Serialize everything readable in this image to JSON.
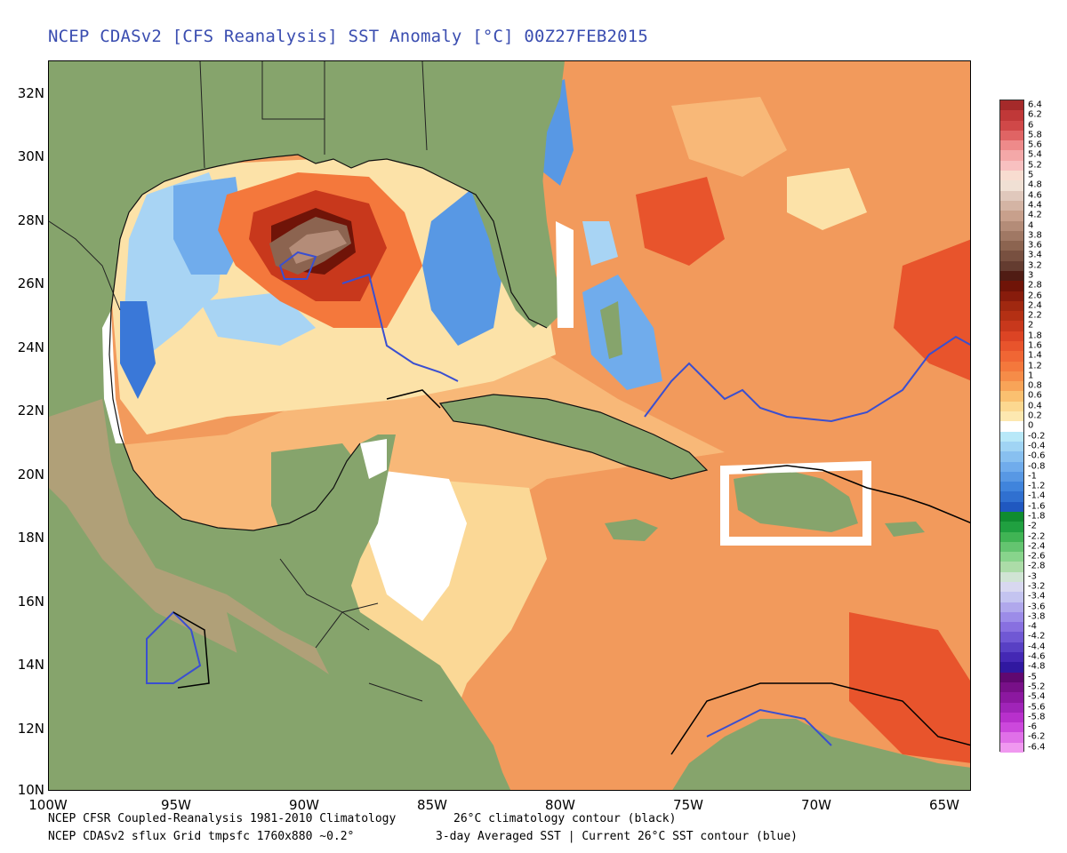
{
  "title": "NCEP CDASv2 [CFS Reanalysis] SST Anomaly [°C] 00Z27FEB2015",
  "lat_labels": [
    "32N",
    "30N",
    "28N",
    "26N",
    "24N",
    "22N",
    "20N",
    "18N",
    "16N",
    "14N",
    "12N",
    "10N"
  ],
  "lon_labels": [
    "100W",
    "95W",
    "90W",
    "85W",
    "80W",
    "75W",
    "70W",
    "65W"
  ],
  "footer": {
    "line1_left": "NCEP CFSR Coupled-Reanalysis 1981-2010 Climatology",
    "line1_right": "26°C climatology contour (black)",
    "line2_left": "NCEP CDASv2 sflux Grid tmpsfc 1760x880 ~0.2°",
    "line2_right": "3-day Averaged SST | Current 26°C SST contour (blue)"
  },
  "legend": {
    "labels": [
      "6.4",
      "6.2",
      "6",
      "5.8",
      "5.6",
      "5.4",
      "5.2",
      "5",
      "4.8",
      "4.6",
      "4.4",
      "4.2",
      "4",
      "3.8",
      "3.6",
      "3.4",
      "3.2",
      "3",
      "2.8",
      "2.6",
      "2.4",
      "2.2",
      "2",
      "1.8",
      "1.6",
      "1.4",
      "1.2",
      "1",
      "0.8",
      "0.6",
      "0.4",
      "0.2",
      "0",
      "-0.2",
      "-0.4",
      "-0.6",
      "-0.8",
      "-1",
      "-1.2",
      "-1.4",
      "-1.6",
      "-1.8",
      "-2",
      "-2.2",
      "-2.4",
      "-2.6",
      "-2.8",
      "-3",
      "-3.2",
      "-3.4",
      "-3.6",
      "-3.8",
      "-4",
      "-4.2",
      "-4.4",
      "-4.6",
      "-4.8",
      "-5",
      "-5.2",
      "-5.4",
      "-5.6",
      "-5.8",
      "-6",
      "-6.2",
      "-6.4"
    ],
    "colors": [
      "#a52a2a",
      "#c03838",
      "#d04848",
      "#e06464",
      "#ee8a8a",
      "#f4a8a8",
      "#f8c0c0",
      "#f8dcd0",
      "#f0e0d4",
      "#e0c8bc",
      "#d4b4a4",
      "#c8a08c",
      "#b48c78",
      "#a07864",
      "#8c6450",
      "#785040",
      "#643c30",
      "#501c14",
      "#701408",
      "#881c0c",
      "#a02810",
      "#b43014",
      "#c8381c",
      "#dc4424",
      "#e8542c",
      "#f06634",
      "#f4783c",
      "#f68c48",
      "#f8a458",
      "#fac070",
      "#fcd890",
      "#fde8b0",
      "#ffffff",
      "#b8e8f8",
      "#a0d4f4",
      "#88c0f0",
      "#70acec",
      "#5898e4",
      "#4084dc",
      "#3070d0",
      "#2058c0",
      "#108c30",
      "#20a040",
      "#40b454",
      "#64c470",
      "#88d48c",
      "#acdca8",
      "#d0e4d4",
      "#d8d8f0",
      "#c4c4f0",
      "#b0a8ec",
      "#9c8ce8",
      "#8870e0",
      "#7058d4",
      "#5840c4",
      "#4428b4",
      "#3018a0",
      "#600870",
      "#781088",
      "#8c18a0",
      "#a024b8",
      "#b830cc",
      "#cc48dc",
      "#e070e8",
      "#f098f0"
    ]
  },
  "colors": {
    "land": "#86a46c",
    "highland": "#b0a078",
    "mask": "#ffffff",
    "contour_current": "#3a4fd0",
    "contour_climo": "#000000"
  }
}
